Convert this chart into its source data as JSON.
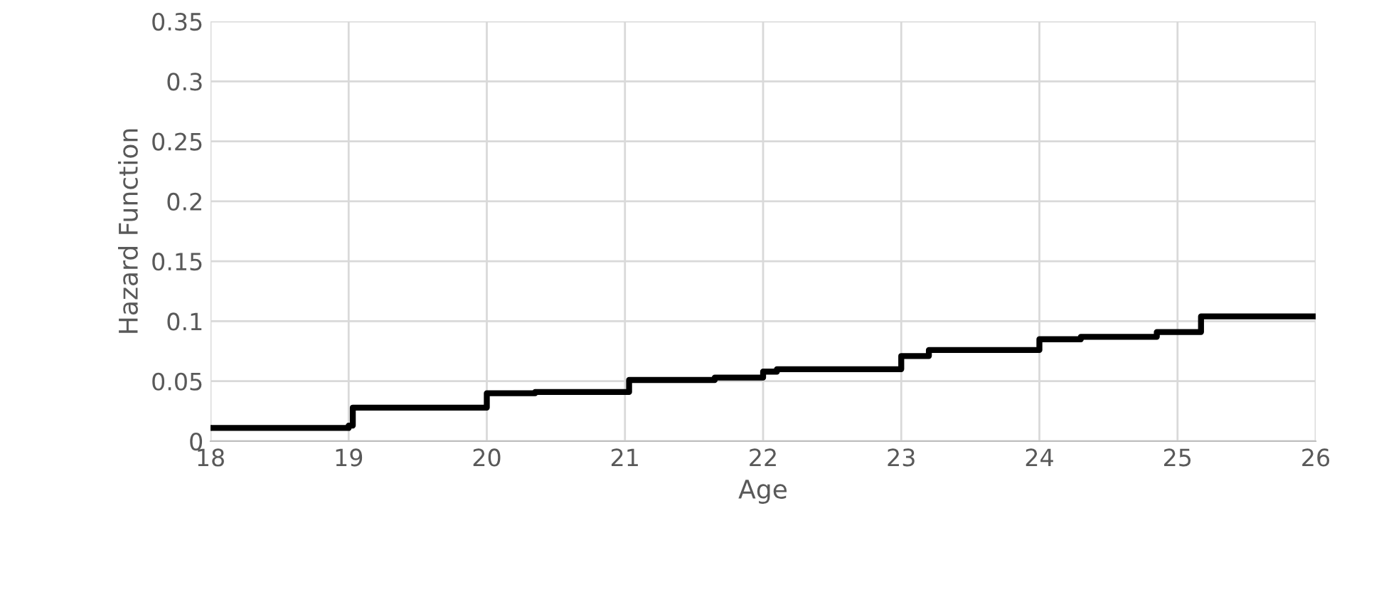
{
  "chart_data": {
    "type": "step",
    "xlabel": "Age",
    "ylabel": "Hazard Function",
    "x": [
      18,
      19,
      19.03,
      20,
      20.35,
      21.03,
      21.65,
      22.0,
      22.1,
      23.0,
      23.2,
      24.0,
      24.3,
      24.85,
      25.17,
      26
    ],
    "series": [
      {
        "color": "#000000",
        "values": [
          0.011,
          0.013,
          0.028,
          0.04,
          0.041,
          0.051,
          0.053,
          0.058,
          0.06,
          0.071,
          0.076,
          0.085,
          0.087,
          0.091,
          0.104,
          0.104
        ]
      }
    ],
    "xlim": [
      18,
      26
    ],
    "xticks": [
      18,
      19,
      20,
      21,
      22,
      23,
      24,
      25,
      26
    ],
    "ylim": [
      0,
      0.35
    ],
    "yticks": [
      {
        "value": 0,
        "label": "0"
      },
      0.05,
      0.1,
      0.15,
      0.2,
      0.25,
      0.3,
      0.35
    ],
    "grid": true,
    "legend": false
  }
}
